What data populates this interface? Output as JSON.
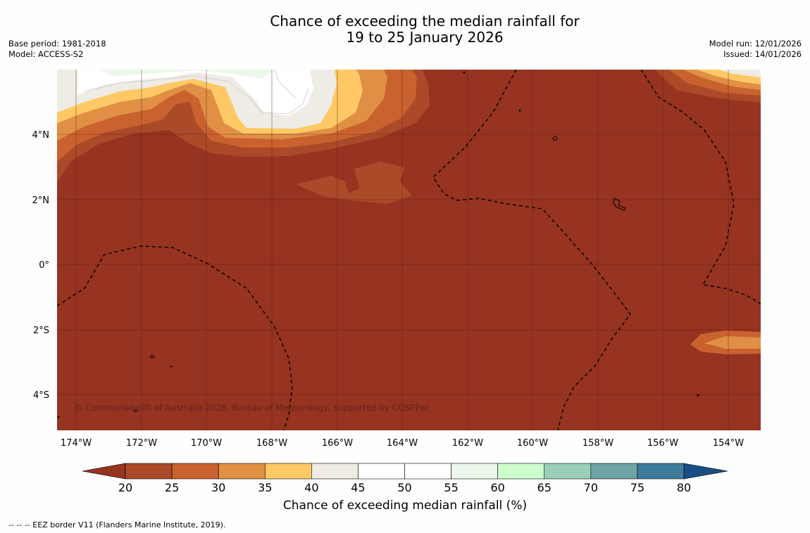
{
  "title": {
    "line1": "Chance of exceeding the median rainfall for",
    "line2": "19 to 25 January 2026"
  },
  "meta_left": {
    "base_period": "Base period: 1981-2018",
    "model": "Model: ACCESS-S2"
  },
  "meta_right": {
    "model_run": "Model run: 12/01/2026",
    "issued": "Issued: 14/01/2026"
  },
  "map": {
    "lat_ticks": [
      "4°N",
      "2°N",
      "0°",
      "2°S",
      "4°S"
    ],
    "lon_ticks": [
      "174°W",
      "172°W",
      "170°W",
      "168°W",
      "166°W",
      "164°W",
      "162°W",
      "160°W",
      "158°W",
      "156°W",
      "154°W"
    ],
    "copyright": "© Commonwealth of Australia 2026, Bureau of Meteorology, supported by COSPPac",
    "background_color": "#963321"
  },
  "colorbar": {
    "ticks": [
      "20",
      "25",
      "30",
      "35",
      "40",
      "45",
      "50",
      "55",
      "60",
      "65",
      "70",
      "75",
      "80"
    ],
    "colors": [
      "#aa4a28",
      "#c9622f",
      "#e08f45",
      "#fec964",
      "#efebe5",
      "#ffffff",
      "#ffffff",
      "#ebf7ea",
      "#ccffcc",
      "#99cfb8",
      "#6ea3a5",
      "#3e7a9a"
    ],
    "under_color": "#963321",
    "over_color": "#1a4d85",
    "label": "Chance of exceeding median rainfall (%)"
  },
  "footnote": "--  --  -- EEZ border V11 (Flanders Marine Institute, 2019)."
}
